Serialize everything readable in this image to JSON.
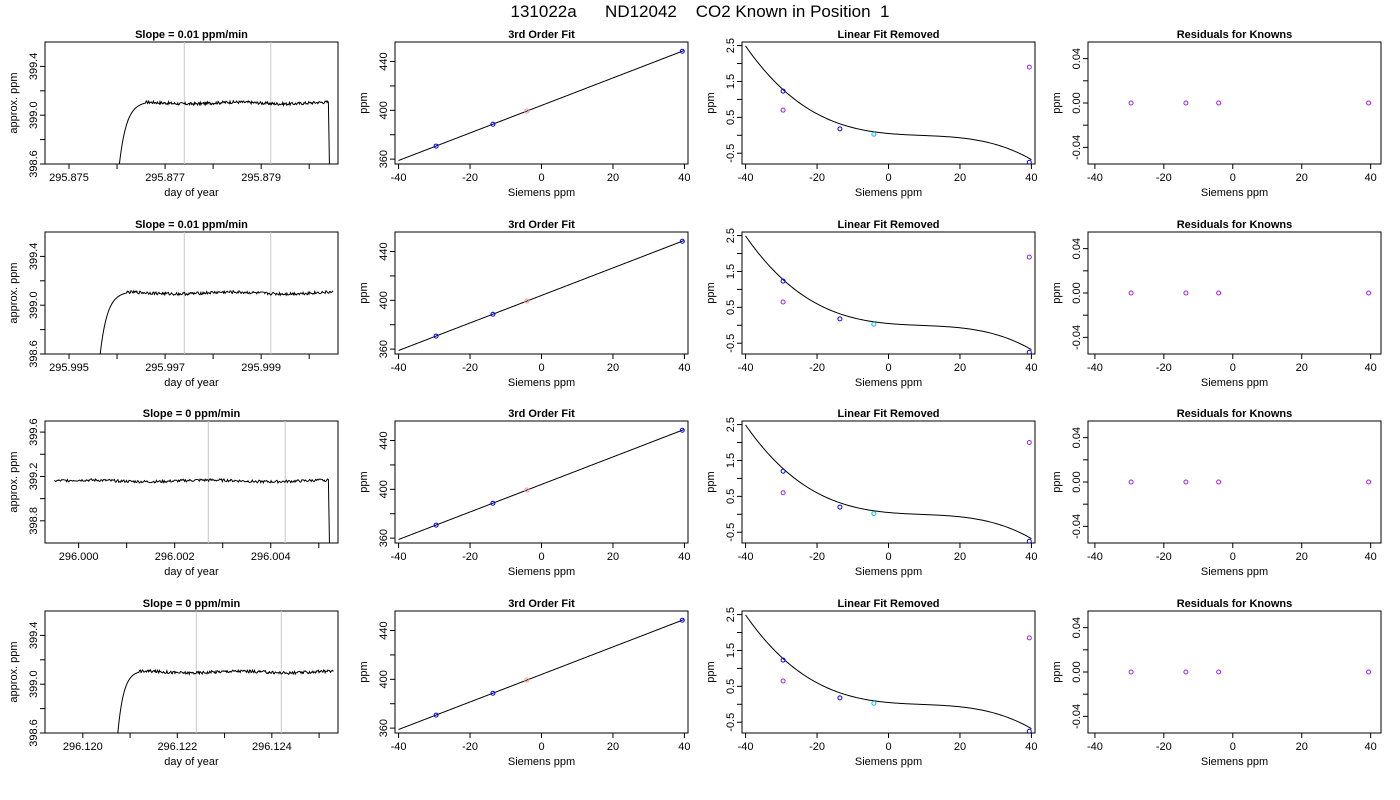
{
  "title": "131022a      ND12042    CO2 Known in Position  1",
  "colors": {
    "line": "#000000",
    "marker_blue": "#0000ff",
    "marker_purple": "#a020f0",
    "marker_magenta": "#ee82ee",
    "marker_cyan": "#00bfff",
    "marker_salmon": "#ff9999",
    "vline": "#c8c8c8"
  },
  "chart_data": [
    {
      "type": "line",
      "title": "Slope =  0.01  ppm/min",
      "xlabel": "day of year",
      "ylabel": "approx. ppm",
      "xlim": [
        295.8745,
        295.8806
      ],
      "ylim": [
        398.6,
        399.6
      ],
      "xticks": [
        295.875,
        295.876,
        295.877,
        295.878,
        295.879,
        295.88
      ],
      "xtick_labels": [
        "295.875",
        "",
        "295.877",
        "",
        "295.879",
        ""
      ],
      "yticks": [
        398.6,
        398.8,
        399.0,
        399.2,
        399.4
      ],
      "ytick_labels": [
        "398.6",
        "",
        "399.0",
        "",
        "399.4"
      ],
      "vlines": [
        295.8774,
        295.8792
      ],
      "trace": {
        "x_start": 295.876,
        "plateau_start": 295.8766,
        "x_end": 295.8804,
        "level": 399.1,
        "drop_end": true,
        "noise": 0.012
      },
      "grid": false,
      "legend": "none"
    },
    {
      "type": "scatter",
      "title": "3rd Order Fit",
      "xlabel": "Siemens ppm",
      "ylabel": "ppm",
      "xlim": [
        -41,
        41
      ],
      "ylim": [
        356,
        456
      ],
      "xticks": [
        -40,
        -20,
        0,
        20,
        40
      ],
      "xtick_labels": [
        "-40",
        "-20",
        "0",
        "20",
        "40"
      ],
      "yticks": [
        360,
        380,
        400,
        420,
        440
      ],
      "ytick_labels": [
        "360",
        "",
        "400",
        "",
        "440"
      ],
      "curve": {
        "type": "linear",
        "slope": 1.128,
        "intercept": 404
      },
      "points": [
        {
          "x": -29.5,
          "y": 370.7
        },
        {
          "x": -13.6,
          "y": 388.6
        },
        {
          "x": -4.1,
          "y": 399.4
        },
        {
          "x": 39.4,
          "y": 448.4
        }
      ],
      "point_colors": [
        "marker_blue",
        "marker_blue",
        "marker_salmon",
        "marker_blue"
      ],
      "grid": false,
      "legend": "none"
    },
    {
      "type": "scatter",
      "title": "Linear Fit Removed",
      "xlabel": "Siemens ppm",
      "ylabel": "ppm",
      "xlim": [
        -41,
        41
      ],
      "ylim": [
        -0.8,
        2.6
      ],
      "xticks": [
        -40,
        -20,
        0,
        20,
        40
      ],
      "xtick_labels": [
        "-40",
        "-20",
        "0",
        "20",
        "40"
      ],
      "yticks": [
        -0.5,
        0,
        0.5,
        1,
        1.5,
        2,
        2.5
      ],
      "ytick_labels": [
        "-0.5",
        "",
        "0.5",
        "",
        "1.5",
        "",
        "2.5"
      ],
      "curve": {
        "type": "cubic",
        "coef": [
          0.05,
          -0.00905,
          0.000535,
          -1.91e-05
        ]
      },
      "points": [
        {
          "x": -29.5,
          "y": 1.23
        },
        {
          "x": -13.6,
          "y": 0.18
        },
        {
          "x": -4.1,
          "y": 0.03
        },
        {
          "x": 39.4,
          "y": -0.75
        }
      ],
      "points2": [
        {
          "x": -29.5,
          "y": 0.7
        },
        {
          "x": 39.4,
          "y": 1.9
        }
      ],
      "point_colors": [
        "marker_blue",
        "marker_blue",
        "marker_cyan",
        "marker_blue"
      ],
      "grid": false,
      "legend": "none"
    },
    {
      "type": "scatter",
      "title": "Residuals for Knowns",
      "xlabel": "Siemens ppm",
      "ylabel": "ppm",
      "xlim": [
        -42,
        43
      ],
      "ylim": [
        -0.055,
        0.055
      ],
      "xticks": [
        -40,
        -20,
        0,
        20,
        40
      ],
      "xtick_labels": [
        "-40",
        "-20",
        "0",
        "20",
        "40"
      ],
      "yticks": [
        -0.04,
        -0.02,
        0,
        0.02,
        0.04
      ],
      "ytick_labels": [
        "-0.04",
        "",
        "0.00",
        "",
        "0.04"
      ],
      "points": [
        {
          "x": -29.5,
          "y": 0
        },
        {
          "x": -13.6,
          "y": 0
        },
        {
          "x": -4.1,
          "y": 0
        },
        {
          "x": 39.4,
          "y": 0
        }
      ],
      "point_colors": [
        "marker_purple",
        "marker_purple",
        "marker_purple",
        "marker_purple"
      ],
      "grid": false,
      "legend": "none"
    },
    {
      "type": "line",
      "title": "Slope =  0.01  ppm/min",
      "xlabel": "day of year",
      "ylabel": "approx. ppm",
      "xlim": [
        295.9945,
        296.0006
      ],
      "ylim": [
        398.6,
        399.6
      ],
      "xticks": [
        295.995,
        295.996,
        295.997,
        295.998,
        295.999,
        296.0
      ],
      "xtick_labels": [
        "295.995",
        "",
        "295.997",
        "",
        "295.999",
        ""
      ],
      "yticks": [
        398.6,
        398.8,
        399.0,
        399.2,
        399.4
      ],
      "ytick_labels": [
        "398.6",
        "",
        "399.0",
        "",
        "399.4"
      ],
      "vlines": [
        295.9974,
        295.9992
      ],
      "trace": {
        "x_start": 295.9956,
        "plateau_start": 295.9962,
        "x_end": 296.0005,
        "level": 399.1,
        "drop_end": false,
        "noise": 0.012
      },
      "grid": false,
      "legend": "none"
    },
    {
      "type": "scatter",
      "title": "3rd Order Fit",
      "xlabel": "Siemens ppm",
      "ylabel": "ppm",
      "xlim": [
        -41,
        41
      ],
      "ylim": [
        356,
        456
      ],
      "xticks": [
        -40,
        -20,
        0,
        20,
        40
      ],
      "xtick_labels": [
        "-40",
        "-20",
        "0",
        "20",
        "40"
      ],
      "yticks": [
        360,
        380,
        400,
        420,
        440
      ],
      "ytick_labels": [
        "360",
        "",
        "400",
        "",
        "440"
      ],
      "curve": {
        "type": "linear",
        "slope": 1.128,
        "intercept": 404
      },
      "points": [
        {
          "x": -29.5,
          "y": 370.7
        },
        {
          "x": -13.6,
          "y": 388.6
        },
        {
          "x": -4.1,
          "y": 399.4
        },
        {
          "x": 39.4,
          "y": 448.4
        }
      ],
      "point_colors": [
        "marker_blue",
        "marker_blue",
        "marker_salmon",
        "marker_blue"
      ],
      "grid": false,
      "legend": "none"
    },
    {
      "type": "scatter",
      "title": "Linear Fit Removed",
      "xlabel": "Siemens ppm",
      "ylabel": "ppm",
      "xlim": [
        -41,
        41
      ],
      "ylim": [
        -0.8,
        2.6
      ],
      "xticks": [
        -40,
        -20,
        0,
        20,
        40
      ],
      "xtick_labels": [
        "-40",
        "-20",
        "0",
        "20",
        "40"
      ],
      "yticks": [
        -0.5,
        0,
        0.5,
        1,
        1.5,
        2,
        2.5
      ],
      "ytick_labels": [
        "-0.5",
        "",
        "0.5",
        "",
        "1.5",
        "",
        "2.5"
      ],
      "curve": {
        "type": "cubic",
        "coef": [
          0.05,
          -0.00905,
          0.000535,
          -1.91e-05
        ]
      },
      "points": [
        {
          "x": -29.5,
          "y": 1.23
        },
        {
          "x": -13.6,
          "y": 0.18
        },
        {
          "x": -4.1,
          "y": 0.03
        },
        {
          "x": 39.4,
          "y": -0.75
        }
      ],
      "points2": [
        {
          "x": -29.5,
          "y": 0.65
        },
        {
          "x": 39.4,
          "y": 1.9
        }
      ],
      "point_colors": [
        "marker_blue",
        "marker_blue",
        "marker_cyan",
        "marker_blue"
      ],
      "grid": false,
      "legend": "none"
    },
    {
      "type": "scatter",
      "title": "Residuals for Knowns",
      "xlabel": "Siemens ppm",
      "ylabel": "ppm",
      "xlim": [
        -42,
        43
      ],
      "ylim": [
        -0.055,
        0.055
      ],
      "xticks": [
        -40,
        -20,
        0,
        20,
        40
      ],
      "xtick_labels": [
        "-40",
        "-20",
        "0",
        "20",
        "40"
      ],
      "yticks": [
        -0.04,
        -0.02,
        0,
        0.02,
        0.04
      ],
      "ytick_labels": [
        "-0.04",
        "",
        "0.00",
        "",
        "0.04"
      ],
      "points": [
        {
          "x": -29.5,
          "y": 0
        },
        {
          "x": -13.6,
          "y": 0
        },
        {
          "x": -4.1,
          "y": 0
        },
        {
          "x": 39.4,
          "y": 0
        }
      ],
      "point_colors": [
        "marker_purple",
        "marker_purple",
        "marker_purple",
        "marker_purple"
      ],
      "grid": false,
      "legend": "none"
    },
    {
      "type": "line",
      "title": "Slope =  0  ppm/min",
      "xlabel": "day of year",
      "ylabel": "approx. ppm",
      "xlim": [
        295.9993,
        296.0054
      ],
      "ylim": [
        398.6,
        399.7
      ],
      "xticks": [
        296.0,
        296.001,
        296.002,
        296.003,
        296.004,
        296.005
      ],
      "xtick_labels": [
        "296.000",
        "",
        "296.002",
        "",
        "296.004",
        ""
      ],
      "yticks": [
        398.8,
        399.0,
        399.2,
        399.4,
        399.6
      ],
      "ytick_labels": [
        "398.8",
        "",
        "399.2",
        "",
        "399.6"
      ],
      "vlines": [
        296.0027,
        296.0043
      ],
      "trace": {
        "x_start": 295.9995,
        "plateau_start": 295.9995,
        "x_end": 296.0052,
        "level": 399.16,
        "drop_end": true,
        "noise": 0.012
      },
      "grid": false,
      "legend": "none"
    },
    {
      "type": "scatter",
      "title": "3rd Order Fit",
      "xlabel": "Siemens ppm",
      "ylabel": "ppm",
      "xlim": [
        -41,
        41
      ],
      "ylim": [
        356,
        456
      ],
      "xticks": [
        -40,
        -20,
        0,
        20,
        40
      ],
      "xtick_labels": [
        "-40",
        "-20",
        "0",
        "20",
        "40"
      ],
      "yticks": [
        360,
        380,
        400,
        420,
        440
      ],
      "ytick_labels": [
        "360",
        "",
        "400",
        "",
        "440"
      ],
      "curve": {
        "type": "linear",
        "slope": 1.128,
        "intercept": 404
      },
      "points": [
        {
          "x": -29.5,
          "y": 370.7
        },
        {
          "x": -13.6,
          "y": 388.6
        },
        {
          "x": -4.1,
          "y": 399.4
        },
        {
          "x": 39.4,
          "y": 448.4
        }
      ],
      "point_colors": [
        "marker_blue",
        "marker_blue",
        "marker_salmon",
        "marker_blue"
      ],
      "grid": false,
      "legend": "none"
    },
    {
      "type": "scatter",
      "title": "Linear Fit Removed",
      "xlabel": "Siemens ppm",
      "ylabel": "ppm",
      "xlim": [
        -41,
        41
      ],
      "ylim": [
        -0.8,
        2.6
      ],
      "xticks": [
        -40,
        -20,
        0,
        20,
        40
      ],
      "xtick_labels": [
        "-40",
        "-20",
        "0",
        "20",
        "40"
      ],
      "yticks": [
        -0.5,
        0,
        0.5,
        1,
        1.5,
        2,
        2.5
      ],
      "ytick_labels": [
        "-0.5",
        "",
        "0.5",
        "",
        "1.5",
        "",
        "2.5"
      ],
      "curve": {
        "type": "cubic",
        "coef": [
          0.05,
          -0.00905,
          0.000535,
          -1.91e-05
        ]
      },
      "points": [
        {
          "x": -29.5,
          "y": 1.2
        },
        {
          "x": -13.6,
          "y": 0.2
        },
        {
          "x": -4.1,
          "y": 0.02
        },
        {
          "x": 39.4,
          "y": -0.75
        }
      ],
      "points2": [
        {
          "x": -29.5,
          "y": 0.6
        },
        {
          "x": 39.4,
          "y": 2.0
        }
      ],
      "point_colors": [
        "marker_blue",
        "marker_blue",
        "marker_cyan",
        "marker_blue"
      ],
      "grid": false,
      "legend": "none"
    },
    {
      "type": "scatter",
      "title": "Residuals for Knowns",
      "xlabel": "Siemens ppm",
      "ylabel": "ppm",
      "xlim": [
        -42,
        43
      ],
      "ylim": [
        -0.055,
        0.055
      ],
      "xticks": [
        -40,
        -20,
        0,
        20,
        40
      ],
      "xtick_labels": [
        "-40",
        "-20",
        "0",
        "20",
        "40"
      ],
      "yticks": [
        -0.04,
        -0.02,
        0,
        0.02,
        0.04
      ],
      "ytick_labels": [
        "-0.04",
        "",
        "0.00",
        "",
        "0.04"
      ],
      "points": [
        {
          "x": -29.5,
          "y": 0
        },
        {
          "x": -13.6,
          "y": 0
        },
        {
          "x": -4.1,
          "y": 0
        },
        {
          "x": 39.4,
          "y": 0
        }
      ],
      "point_colors": [
        "marker_purple",
        "marker_purple",
        "marker_purple",
        "marker_purple"
      ],
      "grid": false,
      "legend": "none"
    },
    {
      "type": "line",
      "title": "Slope =  0  ppm/min",
      "xlabel": "day of year",
      "ylabel": "approx. ppm",
      "xlim": [
        296.1192,
        296.1254
      ],
      "ylim": [
        398.6,
        399.6
      ],
      "xticks": [
        296.12,
        296.121,
        296.122,
        296.123,
        296.124,
        296.125
      ],
      "xtick_labels": [
        "296.120",
        "",
        "296.122",
        "",
        "296.124",
        ""
      ],
      "yticks": [
        398.6,
        398.8,
        399.0,
        399.2,
        399.4
      ],
      "ytick_labels": [
        "398.6",
        "",
        "399.0",
        "",
        "399.4"
      ],
      "vlines": [
        296.1224,
        296.1242
      ],
      "trace": {
        "x_start": 296.1207,
        "plateau_start": 296.1212,
        "x_end": 296.1253,
        "level": 399.1,
        "drop_end": false,
        "noise": 0.012
      },
      "grid": false,
      "legend": "none"
    },
    {
      "type": "scatter",
      "title": "3rd Order Fit",
      "xlabel": "Siemens ppm",
      "ylabel": "ppm",
      "xlim": [
        -41,
        41
      ],
      "ylim": [
        356,
        456
      ],
      "xticks": [
        -40,
        -20,
        0,
        20,
        40
      ],
      "xtick_labels": [
        "-40",
        "-20",
        "0",
        "20",
        "40"
      ],
      "yticks": [
        360,
        380,
        400,
        420,
        440
      ],
      "ytick_labels": [
        "360",
        "",
        "400",
        "",
        "440"
      ],
      "curve": {
        "type": "linear",
        "slope": 1.128,
        "intercept": 404
      },
      "points": [
        {
          "x": -29.5,
          "y": 370.7
        },
        {
          "x": -13.6,
          "y": 388.6
        },
        {
          "x": -4.1,
          "y": 399.4
        },
        {
          "x": 39.4,
          "y": 448.4
        }
      ],
      "point_colors": [
        "marker_blue",
        "marker_blue",
        "marker_salmon",
        "marker_blue"
      ],
      "grid": false,
      "legend": "none"
    },
    {
      "type": "scatter",
      "title": "Linear Fit Removed",
      "xlabel": "Siemens ppm",
      "ylabel": "ppm",
      "xlim": [
        -41,
        41
      ],
      "ylim": [
        -0.8,
        2.6
      ],
      "xticks": [
        -40,
        -20,
        0,
        20,
        40
      ],
      "xtick_labels": [
        "-40",
        "-20",
        "0",
        "20",
        "40"
      ],
      "yticks": [
        -0.5,
        0,
        0.5,
        1,
        1.5,
        2,
        2.5
      ],
      "ytick_labels": [
        "-0.5",
        "",
        "0.5",
        "",
        "1.5",
        "",
        "2.5"
      ],
      "curve": {
        "type": "cubic",
        "coef": [
          0.05,
          -0.00905,
          0.000535,
          -1.91e-05
        ]
      },
      "points": [
        {
          "x": -29.5,
          "y": 1.23
        },
        {
          "x": -13.6,
          "y": 0.18
        },
        {
          "x": -4.1,
          "y": 0.03
        },
        {
          "x": 39.4,
          "y": -0.75
        }
      ],
      "points2": [
        {
          "x": -29.5,
          "y": 0.65
        },
        {
          "x": 39.4,
          "y": 1.85
        }
      ],
      "point_colors": [
        "marker_blue",
        "marker_blue",
        "marker_cyan",
        "marker_blue"
      ],
      "grid": false,
      "legend": "none"
    },
    {
      "type": "scatter",
      "title": "Residuals for Knowns",
      "xlabel": "Siemens ppm",
      "ylabel": "ppm",
      "xlim": [
        -42,
        43
      ],
      "ylim": [
        -0.055,
        0.055
      ],
      "xticks": [
        -40,
        -20,
        0,
        20,
        40
      ],
      "xtick_labels": [
        "-40",
        "-20",
        "0",
        "20",
        "40"
      ],
      "yticks": [
        -0.04,
        -0.02,
        0,
        0.02,
        0.04
      ],
      "ytick_labels": [
        "-0.04",
        "",
        "0.00",
        "",
        "0.04"
      ],
      "points": [
        {
          "x": -29.5,
          "y": 0
        },
        {
          "x": -13.6,
          "y": 0
        },
        {
          "x": -4.1,
          "y": 0
        },
        {
          "x": 39.4,
          "y": 0
        }
      ],
      "point_colors": [
        "marker_purple",
        "marker_purple",
        "marker_purple",
        "marker_purple"
      ],
      "grid": false,
      "legend": "none"
    }
  ]
}
